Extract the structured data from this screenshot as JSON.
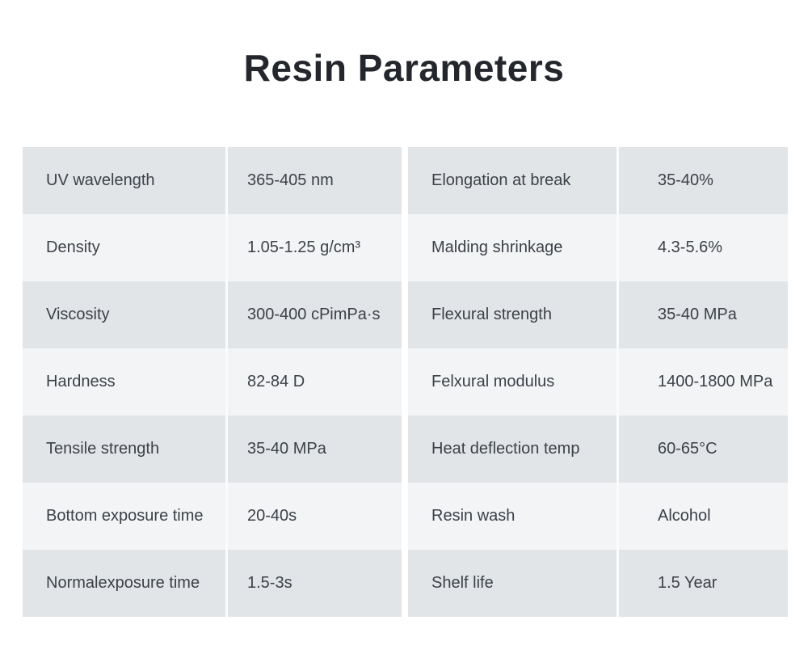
{
  "page": {
    "title": "Resin Parameters"
  },
  "colors": {
    "background": "#ffffff",
    "row_odd": "#e2e5e8",
    "row_even": "#f3f4f6",
    "column_divider": "#fafbfc",
    "title_text": "#23262c",
    "body_text": "#3c4148"
  },
  "tables": {
    "left": {
      "rows": [
        {
          "label": "UV wavelength",
          "value": "365-405 nm"
        },
        {
          "label": "Density",
          "value": "1.05-1.25 g/cm³"
        },
        {
          "label": "Viscosity",
          "value": "300-400 cPimPa·s"
        },
        {
          "label": "Hardness",
          "value": "82-84 D"
        },
        {
          "label": "Tensile strength",
          "value": "35-40 MPa"
        },
        {
          "label": "Bottom exposure time",
          "value": "20-40s"
        },
        {
          "label": "Normalexposure time",
          "value": "1.5-3s"
        }
      ]
    },
    "right": {
      "rows": [
        {
          "label": "Elongation at break",
          "value": "35-40%"
        },
        {
          "label": "Malding shrinkage",
          "value": "4.3-5.6%"
        },
        {
          "label": "Flexural strength",
          "value": "35-40 MPa"
        },
        {
          "label": "Felxural modulus",
          "value": "1400-1800 MPa"
        },
        {
          "label": "Heat deflection temp",
          "value": "60-65°C"
        },
        {
          "label": "Resin wash",
          "value": "Alcohol"
        },
        {
          "label": "Shelf life",
          "value": "1.5 Year"
        }
      ]
    }
  }
}
